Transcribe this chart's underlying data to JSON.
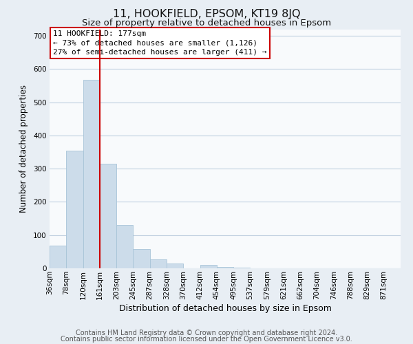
{
  "title": "11, HOOKFIELD, EPSOM, KT19 8JQ",
  "subtitle": "Size of property relative to detached houses in Epsom",
  "xlabel": "Distribution of detached houses by size in Epsom",
  "ylabel": "Number of detached properties",
  "bar_heights": [
    68,
    355,
    568,
    314,
    130,
    57,
    27,
    14,
    0,
    10,
    4,
    2,
    0,
    0,
    0,
    0,
    0,
    0,
    0,
    0,
    0
  ],
  "bar_color": "#ccdcea",
  "bar_edge_color": "#a8c4d8",
  "x_labels": [
    "36sqm",
    "78sqm",
    "120sqm",
    "161sqm",
    "203sqm",
    "245sqm",
    "287sqm",
    "328sqm",
    "370sqm",
    "412sqm",
    "454sqm",
    "495sqm",
    "537sqm",
    "579sqm",
    "621sqm",
    "662sqm",
    "704sqm",
    "746sqm",
    "788sqm",
    "829sqm",
    "871sqm"
  ],
  "vline_color": "#cc0000",
  "vline_x_index": 3,
  "ylim": [
    0,
    720
  ],
  "yticks": [
    0,
    100,
    200,
    300,
    400,
    500,
    600,
    700
  ],
  "annotation_title": "11 HOOKFIELD: 177sqm",
  "annotation_line1": "← 73% of detached houses are smaller (1,126)",
  "annotation_line2": "27% of semi-detached houses are larger (411) →",
  "annotation_box_color": "#ffffff",
  "annotation_box_edge": "#cc0000",
  "footer_line1": "Contains HM Land Registry data © Crown copyright and database right 2024.",
  "footer_line2": "Contains public sector information licensed under the Open Government Licence v3.0.",
  "background_color": "#e8eef4",
  "plot_background": "#f8fafc",
  "grid_color": "#c0d0e0",
  "title_fontsize": 11.5,
  "subtitle_fontsize": 9.5,
  "xlabel_fontsize": 9,
  "ylabel_fontsize": 8.5,
  "tick_fontsize": 7.5,
  "annotation_fontsize": 8,
  "footer_fontsize": 7
}
